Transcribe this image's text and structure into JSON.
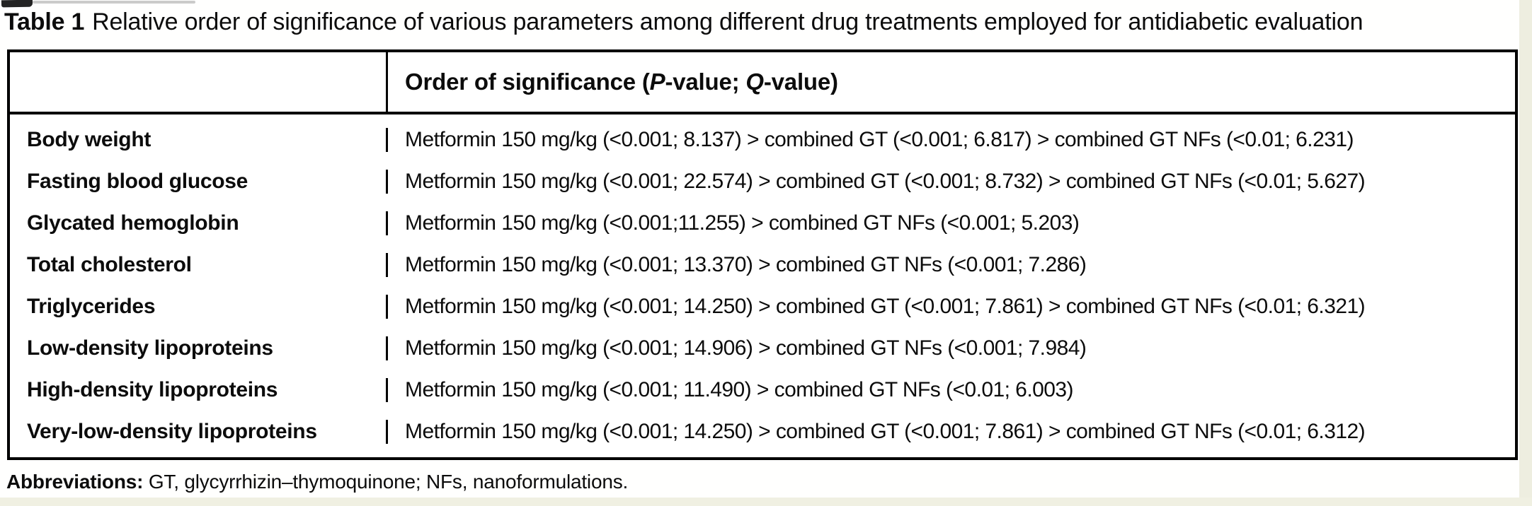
{
  "caption": {
    "label": "Table 1",
    "text": "Relative order of significance of various parameters among different drug treatments employed for antidiabetic evaluation"
  },
  "table": {
    "header": {
      "part1": "Order of significance (",
      "p_italic": "P",
      "part2": "-value; ",
      "q_italic": "Q",
      "part3": "-value)"
    },
    "rows": [
      {
        "parameter": "Body weight",
        "order": "Metformin 150 mg/kg (<0.001; 8.137) > combined GT (<0.001; 6.817) > combined GT NFs (<0.01; 6.231)"
      },
      {
        "parameter": "Fasting blood glucose",
        "order": "Metformin 150 mg/kg (<0.001; 22.574) > combined GT (<0.001; 8.732) > combined GT NFs (<0.01; 5.627)"
      },
      {
        "parameter": "Glycated hemoglobin",
        "order": "Metformin 150 mg/kg (<0.001;11.255) > combined GT NFs (<0.001; 5.203)"
      },
      {
        "parameter": "Total cholesterol",
        "order": "Metformin 150 mg/kg (<0.001; 13.370) > combined GT NFs (<0.001; 7.286)"
      },
      {
        "parameter": "Triglycerides",
        "order": "Metformin 150 mg/kg (<0.001; 14.250) > combined GT (<0.001; 7.861) > combined GT NFs (<0.01; 6.321)"
      },
      {
        "parameter": "Low-density lipoproteins",
        "order": "Metformin 150 mg/kg (<0.001; 14.906) > combined GT NFs (<0.001; 7.984)"
      },
      {
        "parameter": "High-density lipoproteins",
        "order": "Metformin 150 mg/kg (<0.001; 11.490) > combined GT NFs (<0.01; 6.003)"
      },
      {
        "parameter": "Very-low-density lipoproteins",
        "order": "Metformin 150 mg/kg (<0.001; 14.250) > combined GT (<0.001; 7.861) > combined GT NFs (<0.01; 6.312)"
      }
    ]
  },
  "footnote": {
    "label": "Abbreviations:",
    "text": " GT, glycyrrhizin–thymoquinone; NFs, nanoformulations."
  },
  "colors": {
    "text": "#0c0c0c",
    "border": "#000000",
    "page_edge": "#eeeee0"
  }
}
